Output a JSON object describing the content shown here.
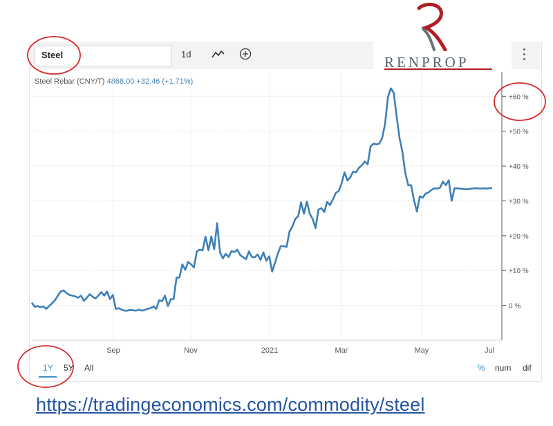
{
  "toolbar": {
    "search_value": "Steel",
    "interval_label": "1d",
    "chart_type_icon": "line-chart-icon",
    "add_icon": "plus-circle-icon",
    "menu_icon": "vertical-dots-icon"
  },
  "logo": {
    "text": "RENPROP",
    "accent_color": "#b01e24"
  },
  "legend": {
    "name": "Steel Rebar (CNY/T)",
    "price": "4868.00",
    "change": "+32.46 (+1.71%)"
  },
  "range_buttons": [
    "1Y",
    "5Y",
    "All"
  ],
  "active_range": "1Y",
  "view_buttons": [
    "%",
    "num",
    "dif"
  ],
  "active_view": "%",
  "url": "https://tradingeconomics.com/commodity/steel",
  "colors": {
    "line": "#3d7fb8",
    "annotation": "#d42a2a"
  },
  "chart_data": {
    "type": "line",
    "title": "",
    "xlabel": "",
    "ylabel": "",
    "x_ticks": [
      "Sep",
      "Nov",
      "2021",
      "Mar",
      "May",
      "Jul"
    ],
    "y_ticks": [
      "0 %",
      "+10 %",
      "+20 %",
      "+30 %",
      "+40 %",
      "+50 %",
      "+60 %"
    ],
    "ylim": [
      -10,
      67
    ],
    "grid": true,
    "series": [
      {
        "name": "Steel Rebar (CNY/T)",
        "x": [
          0,
          1,
          2,
          3,
          4,
          5,
          6,
          7,
          8,
          9,
          10,
          11,
          12,
          13,
          14,
          15,
          16,
          17,
          18,
          19,
          20,
          21,
          22,
          23,
          24,
          25,
          26,
          27,
          28,
          29,
          30,
          31,
          32,
          33,
          34,
          35,
          36,
          37,
          38,
          39,
          40,
          41,
          42,
          43,
          44,
          45,
          46,
          47,
          48,
          49,
          50,
          51,
          52,
          53,
          54,
          55,
          56,
          57,
          58,
          59,
          60,
          61,
          62,
          63,
          64,
          65,
          66,
          67,
          68,
          69,
          70,
          71,
          72,
          73,
          74,
          75,
          76,
          77,
          78,
          79,
          80,
          81,
          82,
          83,
          84,
          85,
          86,
          87,
          88,
          89,
          90,
          91,
          92,
          93,
          94,
          95,
          96,
          97,
          98,
          99,
          100,
          101,
          102,
          103,
          104,
          105,
          106,
          107,
          108,
          109,
          110,
          111,
          112,
          113,
          114,
          115,
          116,
          117,
          118,
          119,
          120,
          121,
          122,
          123,
          124,
          125,
          126,
          127,
          128,
          129,
          130,
          131,
          132,
          133,
          134,
          135,
          136,
          137,
          138,
          139,
          140,
          141,
          142,
          143,
          144,
          145,
          146,
          147,
          148,
          149,
          150,
          151,
          152,
          153,
          154,
          155,
          156,
          157,
          158,
          159
        ],
        "values": [
          0.8,
          -0.4,
          -0.2,
          -0.5,
          -0.3,
          -1,
          -0.2,
          0.6,
          1.5,
          2.8,
          4,
          4.3,
          3.5,
          3,
          2.8,
          2.6,
          2.2,
          2.8,
          1.3,
          2.2,
          3.2,
          2.5,
          2,
          2.8,
          3.8,
          2.8,
          4,
          1.8,
          3,
          -1,
          -0.8,
          -1.2,
          -1.5,
          -1.5,
          -1.3,
          -1.4,
          -1.5,
          -1.2,
          -1.5,
          -1.3,
          -1,
          -0.8,
          -0.3,
          -1,
          1.5,
          1.2,
          2.8,
          -0.2,
          1.8,
          1.8,
          8,
          8,
          11.8,
          10.2,
          12.5,
          11.8,
          10.9,
          15.5,
          16,
          15.8,
          19.7,
          15.8,
          19.8,
          16.1,
          23.6,
          15.2,
          13.5,
          14.8,
          13.9,
          15.6,
          15.3,
          16,
          14.4,
          13.8,
          13.3,
          15.5,
          13.9,
          13.8,
          14.6,
          13.1,
          15.2,
          12.8,
          14.1,
          9.7,
          12.2,
          14.9,
          17,
          17,
          16.8,
          21.2,
          22.6,
          24.8,
          25.6,
          29.6,
          26.3,
          29.8,
          26.3,
          24.8,
          22.2,
          27.5,
          27.9,
          26.8,
          29.7,
          28.8,
          30.4,
          32.3,
          32.8,
          35,
          38.2,
          35.8,
          36.8,
          38.4,
          38.2,
          39.5,
          40.2,
          41.3,
          40.5,
          45.6,
          46.4,
          46.2,
          46.4,
          48,
          52,
          59.8,
          62.3,
          61,
          54.2,
          48,
          44,
          38,
          34.5,
          34.5,
          30.2,
          26.9,
          31.3,
          30.9,
          32.1,
          32.4,
          33.1,
          33.6,
          33.5,
          33.8,
          35.5,
          34.5,
          35.9,
          30,
          33.6,
          33.6,
          33.5,
          33.4,
          33.3,
          33.4,
          33.5,
          33.6,
          33.6,
          33.5,
          33.6,
          33.5,
          33.6,
          33.7
        ]
      }
    ]
  }
}
